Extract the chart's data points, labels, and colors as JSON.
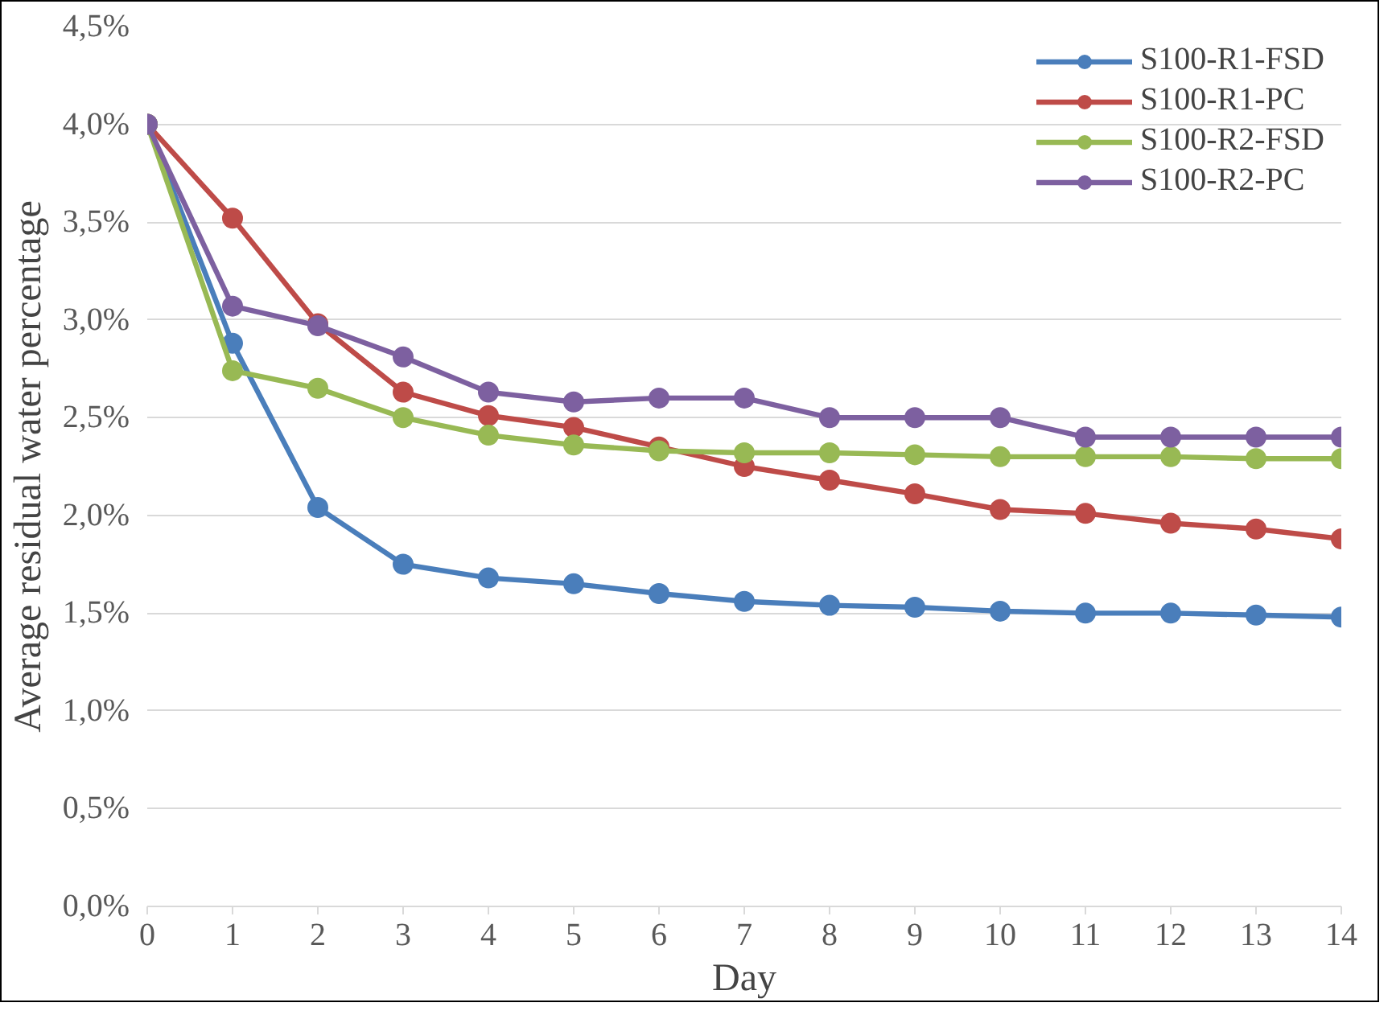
{
  "chart_data": {
    "type": "line",
    "xlabel": "Day",
    "ylabel": "Average residual water percentage",
    "x": [
      0,
      1,
      2,
      3,
      4,
      5,
      6,
      7,
      8,
      9,
      10,
      11,
      12,
      13,
      14
    ],
    "xlim": [
      0,
      14
    ],
    "xticks": [
      0,
      1,
      2,
      3,
      4,
      5,
      6,
      7,
      8,
      9,
      10,
      11,
      12,
      13,
      14
    ],
    "ylim": [
      0,
      4.5
    ],
    "yticks": [
      {
        "value": 0,
        "label": "0,0%"
      },
      {
        "value": 0.5,
        "label": "0,5%"
      },
      {
        "value": 1,
        "label": "1,0%"
      },
      {
        "value": 1.5,
        "label": "1,5%"
      },
      {
        "value": 2,
        "label": "2,0%"
      },
      {
        "value": 2.5,
        "label": "2,5%"
      },
      {
        "value": 3,
        "label": "3,0%"
      },
      {
        "value": 3.5,
        "label": "3,5%"
      },
      {
        "value": 4,
        "label": "4,0%"
      },
      {
        "value": 4.5,
        "label": "4,5%"
      }
    ],
    "grid": "y",
    "legend": "top right",
    "marker": "circle",
    "line_style": "solid",
    "series": [
      {
        "name": "S100-R1-FSD",
        "color": "#4a7ebb",
        "values": [
          4.0,
          2.88,
          2.04,
          1.75,
          1.68,
          1.65,
          1.6,
          1.56,
          1.54,
          1.53,
          1.51,
          1.5,
          1.5,
          1.49,
          1.48
        ]
      },
      {
        "name": "S100-R1-PC",
        "color": "#be4b48",
        "values": [
          4.0,
          3.52,
          2.98,
          2.63,
          2.51,
          2.45,
          2.35,
          2.25,
          2.18,
          2.11,
          2.03,
          2.01,
          1.96,
          1.93,
          1.88
        ]
      },
      {
        "name": "S100-R2-FSD",
        "color": "#98b954",
        "values": [
          4.0,
          2.74,
          2.65,
          2.5,
          2.41,
          2.36,
          2.33,
          2.32,
          2.32,
          2.31,
          2.3,
          2.3,
          2.3,
          2.29,
          2.29
        ]
      },
      {
        "name": "S100-R2-PC",
        "color": "#7d60a0",
        "values": [
          4.0,
          3.07,
          2.97,
          2.81,
          2.63,
          2.58,
          2.6,
          2.6,
          2.5,
          2.5,
          2.5,
          2.4,
          2.4,
          2.4,
          2.4
        ]
      }
    ]
  }
}
